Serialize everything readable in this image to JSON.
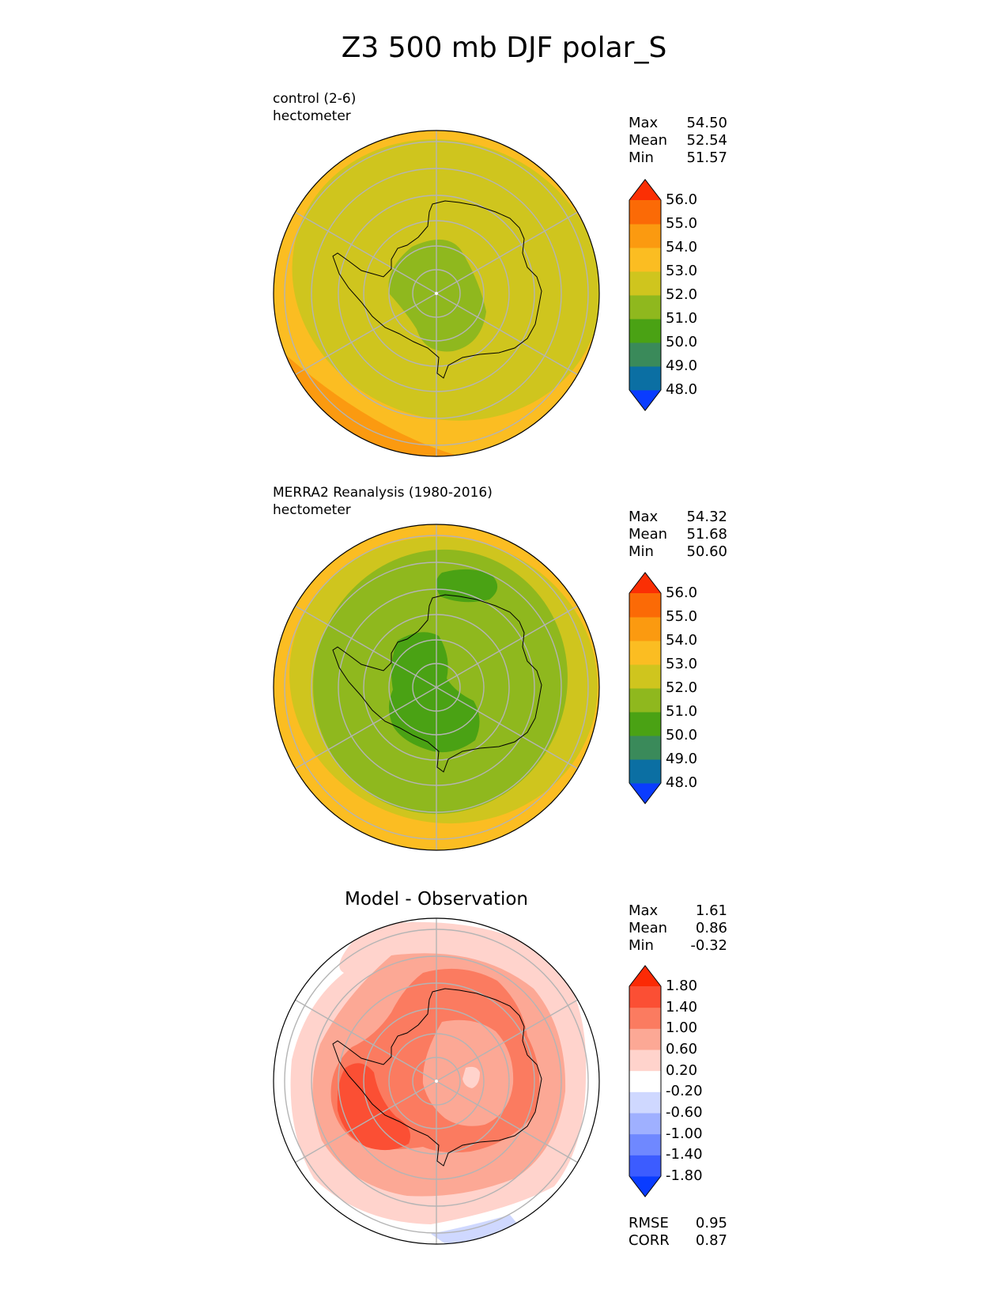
{
  "title": "Z3 500 mb DJF polar_S",
  "stat_labels": {
    "max": "Max",
    "mean": "Mean",
    "min": "Min",
    "rmse": "RMSE",
    "corr": "CORR"
  },
  "panels": [
    {
      "id": "test",
      "title_line1": "control (2-6)",
      "title_line2": "hectometer",
      "stats": {
        "max": "54.50",
        "mean": "52.54",
        "min": "51.57"
      },
      "colorbar": {
        "colors": [
          "#0a3cff",
          "#0b6fa3",
          "#3a8a5a",
          "#4aa214",
          "#8fb81e",
          "#cfc51e",
          "#fbbd22",
          "#fb9a10",
          "#fb6a06",
          "#fb2f04"
        ],
        "labels": [
          "48.0",
          "49.0",
          "50.0",
          "51.0",
          "52.0",
          "53.0",
          "54.0",
          "55.0",
          "56.0"
        ]
      }
    },
    {
      "id": "reference",
      "title_line1": "MERRA2 Reanalysis (1980-2016)",
      "title_line2": "hectometer",
      "stats": {
        "max": "54.32",
        "mean": "51.68",
        "min": "50.60"
      },
      "colorbar": {
        "colors": [
          "#0a3cff",
          "#0b6fa3",
          "#3a8a5a",
          "#4aa214",
          "#8fb81e",
          "#cfc51e",
          "#fbbd22",
          "#fb9a10",
          "#fb6a06",
          "#fb2f04"
        ],
        "labels": [
          "48.0",
          "49.0",
          "50.0",
          "51.0",
          "52.0",
          "53.0",
          "54.0",
          "55.0",
          "56.0"
        ]
      }
    },
    {
      "id": "difference",
      "title": "Model - Observation",
      "stats": {
        "max": "1.61",
        "mean": "0.86",
        "min": "-0.32",
        "rmse": "0.95",
        "corr": "0.87"
      },
      "colorbar": {
        "colors": [
          "#0a3cff",
          "#3c5cff",
          "#6f88ff",
          "#9fb0ff",
          "#cfd8ff",
          "#ffffff",
          "#ffd3cc",
          "#fca895",
          "#fb7b60",
          "#fb4f34",
          "#fb2a05"
        ],
        "labels": [
          "-1.80",
          "-1.40",
          "-1.00",
          "-0.60",
          "-0.20",
          "0.20",
          "0.60",
          "1.00",
          "1.40",
          "1.80"
        ]
      }
    }
  ],
  "chart_data": [
    {
      "type": "heatmap",
      "projection": "south polar stereographic",
      "title": "control (2-6)",
      "units": "hectometer",
      "variable": "Z3 500 mb DJF",
      "color_levels": [
        48.0,
        49.0,
        50.0,
        51.0,
        52.0,
        53.0,
        54.0,
        55.0,
        56.0
      ],
      "max": 54.5,
      "mean": 52.54,
      "min": 51.57
    },
    {
      "type": "heatmap",
      "projection": "south polar stereographic",
      "title": "MERRA2 Reanalysis (1980-2016)",
      "units": "hectometer",
      "variable": "Z3 500 mb DJF",
      "color_levels": [
        48.0,
        49.0,
        50.0,
        51.0,
        52.0,
        53.0,
        54.0,
        55.0,
        56.0
      ],
      "max": 54.32,
      "mean": 51.68,
      "min": 50.6
    },
    {
      "type": "heatmap",
      "projection": "south polar stereographic",
      "title": "Model - Observation",
      "color_levels": [
        -1.8,
        -1.4,
        -1.0,
        -0.6,
        -0.2,
        0.2,
        0.6,
        1.0,
        1.4,
        1.8
      ],
      "max": 1.61,
      "mean": 0.86,
      "min": -0.32,
      "rmse": 0.95,
      "corr": 0.87
    }
  ]
}
